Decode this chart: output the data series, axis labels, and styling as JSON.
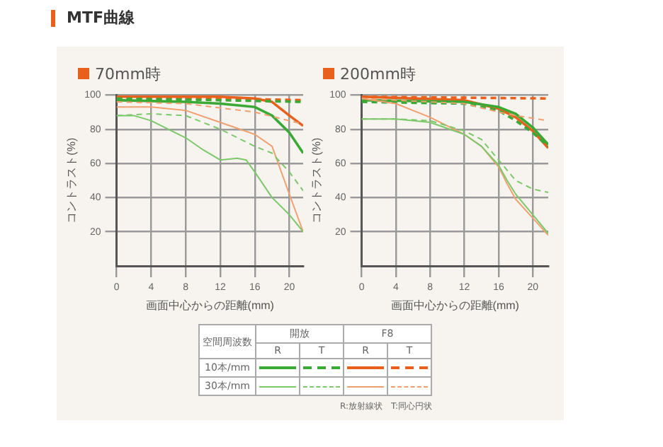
{
  "chart_data": [
    {
      "type": "other",
      "title": "MTF曲線"
    },
    {
      "type": "line",
      "title": "70mm時",
      "xlabel": "画面中心からの距離(mm)",
      "ylabel": "コントラスト(%)",
      "xlim": [
        0,
        21.6
      ],
      "ylim": [
        0,
        100
      ],
      "xticks": [
        0,
        4,
        8,
        12,
        16,
        20
      ],
      "yticks": [
        20,
        40,
        60,
        80,
        100
      ],
      "grid": true,
      "legend": false,
      "marker": "none",
      "series": [
        {
          "color": "#e8601c",
          "line_style": "solid",
          "x": [
            0,
            12,
            16,
            18,
            20,
            21.6
          ],
          "values": [
            99,
            99,
            98,
            96,
            88,
            82
          ]
        },
        {
          "color": "#e8601c",
          "line_style": "dashed",
          "x": [
            0,
            12,
            21.6
          ],
          "values": [
            98,
            98,
            97
          ]
        },
        {
          "color": "#3aa935",
          "line_style": "solid",
          "x": [
            0,
            8,
            12,
            16,
            18,
            20,
            21.6
          ],
          "values": [
            97,
            96,
            95,
            93,
            88,
            78,
            66
          ]
        },
        {
          "color": "#3aa935",
          "line_style": "dashed",
          "x": [
            0,
            12,
            21.6
          ],
          "values": [
            98,
            97,
            96
          ]
        },
        {
          "color": "#f0a070",
          "line_style": "solid",
          "x": [
            0,
            4,
            8,
            12,
            16,
            18,
            20,
            21.6
          ],
          "values": [
            93,
            93,
            91,
            84,
            77,
            70,
            42,
            20
          ]
        },
        {
          "color": "#f0a070",
          "line_style": "dashed",
          "x": [
            0,
            8,
            16,
            21.6
          ],
          "values": [
            96,
            95,
            90,
            83
          ]
        },
        {
          "color": "#7cc86a",
          "line_style": "solid",
          "x": [
            0,
            2,
            4,
            8,
            10,
            12,
            14,
            15,
            16,
            18,
            20,
            21.6
          ],
          "values": [
            88,
            88,
            85,
            75,
            68,
            62,
            63,
            62,
            55,
            40,
            30,
            20
          ]
        },
        {
          "color": "#7cc86a",
          "line_style": "dashed",
          "x": [
            0,
            4,
            8,
            12,
            16,
            18,
            20,
            21.6
          ],
          "values": [
            88,
            89,
            88,
            80,
            70,
            66,
            55,
            44
          ]
        }
      ]
    },
    {
      "type": "line",
      "title": "200mm時",
      "xlabel": "画面中心からの距離(mm)",
      "ylabel": "コントラスト(%)",
      "xlim": [
        0,
        21.8
      ],
      "ylim": [
        0,
        100
      ],
      "xticks": [
        0,
        4,
        8,
        12,
        16,
        20
      ],
      "yticks": [
        20,
        40,
        60,
        80,
        100
      ],
      "grid": true,
      "legend": false,
      "marker": "none",
      "series": [
        {
          "color": "#e8601c",
          "line_style": "solid",
          "x": [
            0,
            12,
            16,
            18,
            20,
            21.8
          ],
          "values": [
            99,
            97,
            92,
            87,
            79,
            69
          ]
        },
        {
          "color": "#e8601c",
          "line_style": "dashed",
          "x": [
            0,
            21.8
          ],
          "values": [
            99,
            98
          ]
        },
        {
          "color": "#3aa935",
          "line_style": "solid",
          "x": [
            0,
            12,
            16,
            18,
            20,
            21.8
          ],
          "values": [
            97,
            96,
            93,
            89,
            81,
            71
          ]
        },
        {
          "color": "#3aa935",
          "line_style": "dashed",
          "x": [
            0,
            12,
            16,
            18,
            20,
            21.8
          ],
          "values": [
            96,
            95,
            91,
            85,
            78,
            70
          ]
        },
        {
          "color": "#f0a070",
          "line_style": "solid",
          "x": [
            0,
            4,
            8,
            12,
            14,
            16,
            17,
            18,
            20,
            21.8
          ],
          "values": [
            98,
            95,
            87,
            77,
            70,
            58,
            48,
            39,
            28,
            18
          ]
        },
        {
          "color": "#f0a070",
          "line_style": "dashed",
          "x": [
            0,
            12,
            16,
            18,
            21.8
          ],
          "values": [
            98,
            95,
            90,
            88,
            85
          ]
        },
        {
          "color": "#7cc86a",
          "line_style": "solid",
          "x": [
            0,
            4,
            8,
            12,
            14,
            16,
            17,
            18,
            20,
            21.8
          ],
          "values": [
            86,
            86,
            84,
            77,
            70,
            59,
            50,
            42,
            30,
            19
          ]
        },
        {
          "color": "#7cc86a",
          "line_style": "dashed",
          "x": [
            0,
            4,
            8,
            12,
            14,
            16,
            18,
            20,
            21.8
          ],
          "values": [
            86,
            86,
            85,
            79,
            74,
            62,
            50,
            45,
            43
          ]
        }
      ]
    },
    {
      "type": "other",
      "annotations": [
        "空間周波数",
        "開放",
        "F8",
        "R",
        "T",
        "R",
        "T",
        "10本/mm",
        "30本/mm",
        "R:放射線状　T:同心円状"
      ]
    }
  ]
}
